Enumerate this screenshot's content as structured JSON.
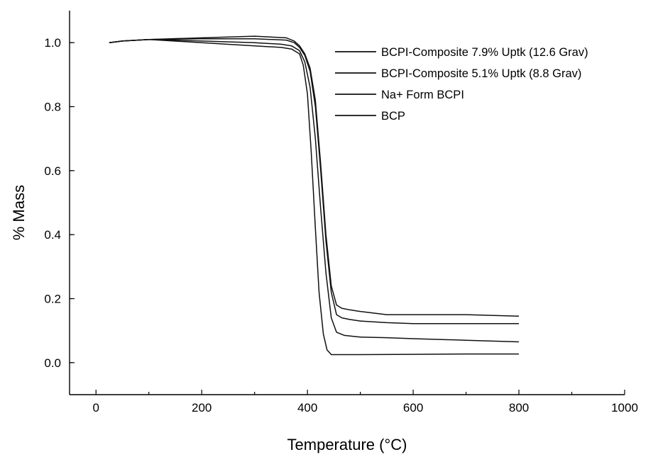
{
  "chart_data": {
    "type": "line",
    "xlabel": "Temperature (°C)",
    "ylabel": "% Mass",
    "xlim": [
      -50,
      1000
    ],
    "ylim": [
      -0.1,
      1.1
    ],
    "xticks": [
      0,
      200,
      400,
      600,
      800,
      1000
    ],
    "xtick_labels": [
      "0",
      "200",
      "400",
      "600",
      "800",
      "1000"
    ],
    "yticks": [
      0.0,
      0.2,
      0.4,
      0.6,
      0.8,
      1.0
    ],
    "ytick_labels": [
      "0.0",
      "0.2",
      "0.4",
      "0.6",
      "0.8",
      "1.0"
    ],
    "grid": false,
    "legend_position": "top-right",
    "series": [
      {
        "name": "BCPI-Composite 7.9% Uptk (12.6 Grav)",
        "x": [
          25,
          50,
          100,
          200,
          300,
          360,
          375,
          385,
          395,
          405,
          415,
          425,
          435,
          445,
          455,
          465,
          480,
          500,
          550,
          600,
          700,
          800
        ],
        "y": [
          1.0,
          1.005,
          1.01,
          1.015,
          1.02,
          1.015,
          1.005,
          0.99,
          0.965,
          0.92,
          0.82,
          0.62,
          0.4,
          0.24,
          0.18,
          0.17,
          0.165,
          0.16,
          0.15,
          0.15,
          0.15,
          0.145
        ]
      },
      {
        "name": "BCPI-Composite 5.1% Uptk (8.8 Grav)",
        "x": [
          25,
          50,
          100,
          200,
          300,
          360,
          375,
          385,
          395,
          405,
          415,
          425,
          435,
          445,
          455,
          465,
          480,
          500,
          550,
          600,
          700,
          800
        ],
        "y": [
          1.0,
          1.005,
          1.01,
          1.012,
          1.012,
          1.008,
          1.0,
          0.985,
          0.96,
          0.91,
          0.8,
          0.6,
          0.38,
          0.22,
          0.15,
          0.14,
          0.135,
          0.13,
          0.125,
          0.122,
          0.122,
          0.122
        ]
      },
      {
        "name": "Na+ Form BCPI",
        "x": [
          25,
          50,
          100,
          200,
          300,
          350,
          370,
          385,
          395,
          405,
          415,
          425,
          435,
          445,
          455,
          470,
          500,
          550,
          600,
          700,
          800
        ],
        "y": [
          1.0,
          1.005,
          1.01,
          1.005,
          1.0,
          0.995,
          0.99,
          0.975,
          0.94,
          0.86,
          0.7,
          0.48,
          0.28,
          0.14,
          0.095,
          0.085,
          0.08,
          0.078,
          0.075,
          0.07,
          0.065
        ]
      },
      {
        "name": "BCP",
        "x": [
          25,
          50,
          100,
          200,
          300,
          350,
          370,
          385,
          392,
          400,
          407,
          415,
          422,
          430,
          437,
          445,
          460,
          500,
          600,
          700,
          800
        ],
        "y": [
          1.0,
          1.005,
          1.01,
          1.0,
          0.99,
          0.985,
          0.98,
          0.965,
          0.93,
          0.84,
          0.66,
          0.42,
          0.22,
          0.09,
          0.04,
          0.025,
          0.025,
          0.025,
          0.026,
          0.027,
          0.027
        ]
      }
    ]
  }
}
